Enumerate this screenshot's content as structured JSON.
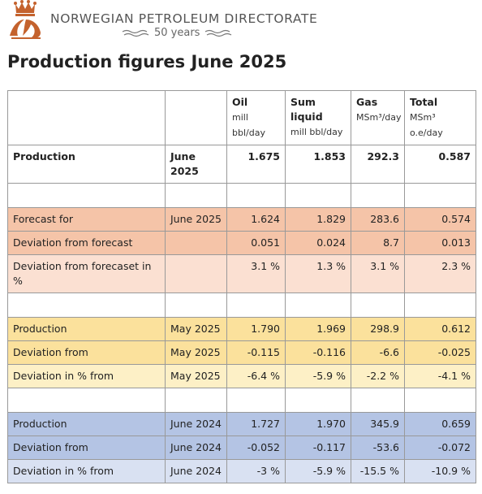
{
  "header": {
    "org_name": "NORWEGIAN PETROLEUM DIRECTORATE",
    "anniversary": "50 years",
    "logo_icon": "crown-oil-drop-logo-icon",
    "logo_color": "#c4622d"
  },
  "title": "Production figures June 2025",
  "table": {
    "columns": [
      {
        "name": "",
        "unit": ""
      },
      {
        "name": "",
        "unit": ""
      },
      {
        "name": "Oil",
        "unit": "mill bbl/day"
      },
      {
        "name": "Sum liquid",
        "unit": "mill bbl/day"
      },
      {
        "name": "Gas",
        "unit": "MSm³/day"
      },
      {
        "name": "Total",
        "unit": "MSm³ o.e/day"
      }
    ],
    "production": {
      "label": "Production",
      "period": "June 2025",
      "oil": "1.675",
      "liquid": "1.853",
      "gas": "292.3",
      "total": "0.587"
    },
    "forecast_group": {
      "rows": [
        {
          "label": "Forecast for",
          "period": "June 2025",
          "oil": "1.624",
          "liquid": "1.829",
          "gas": "283.6",
          "total": "0.574"
        },
        {
          "label": "Deviation from forecast",
          "period": "",
          "oil": "0.051",
          "liquid": "0.024",
          "gas": "8.7",
          "total": "0.013"
        },
        {
          "label": "Deviation from forecaset in %",
          "period": "",
          "oil": "3.1 %",
          "liquid": "1.3 %",
          "gas": "3.1 %",
          "total": "2.3 %"
        }
      ]
    },
    "prev_month_group": {
      "rows": [
        {
          "label": "Production",
          "period": "May 2025",
          "oil": "1.790",
          "liquid": "1.969",
          "gas": "298.9",
          "total": "0.612"
        },
        {
          "label": "Deviation from",
          "period": "May 2025",
          "oil": "-0.115",
          "liquid": "-0.116",
          "gas": "-6.6",
          "total": "-0.025"
        },
        {
          "label": "Deviation in % from",
          "period": "May 2025",
          "oil": "-6.4 %",
          "liquid": "-5.9 %",
          "gas": "-2.2 %",
          "total": "-4.1 %"
        }
      ]
    },
    "prev_year_group": {
      "rows": [
        {
          "label": "Production",
          "period": "June 2024",
          "oil": "1.727",
          "liquid": "1.970",
          "gas": "345.9",
          "total": "0.659"
        },
        {
          "label": "Deviation from",
          "period": "June 2024",
          "oil": "-0.052",
          "liquid": "-0.117",
          "gas": "-53.6",
          "total": "-0.072"
        },
        {
          "label": "Deviation in % from",
          "period": "June 2024",
          "oil": "-3 %",
          "liquid": "-5.9 %",
          "gas": "-15.5 %",
          "total": "-10.9 %"
        }
      ]
    }
  },
  "colors": {
    "forecast_dark": "#f5c4a8",
    "forecast_light": "#fbe0d2",
    "month_dark": "#fbe19c",
    "month_light": "#fdf0c6",
    "year_dark": "#b4c4e4",
    "year_light": "#d9e1f2"
  }
}
